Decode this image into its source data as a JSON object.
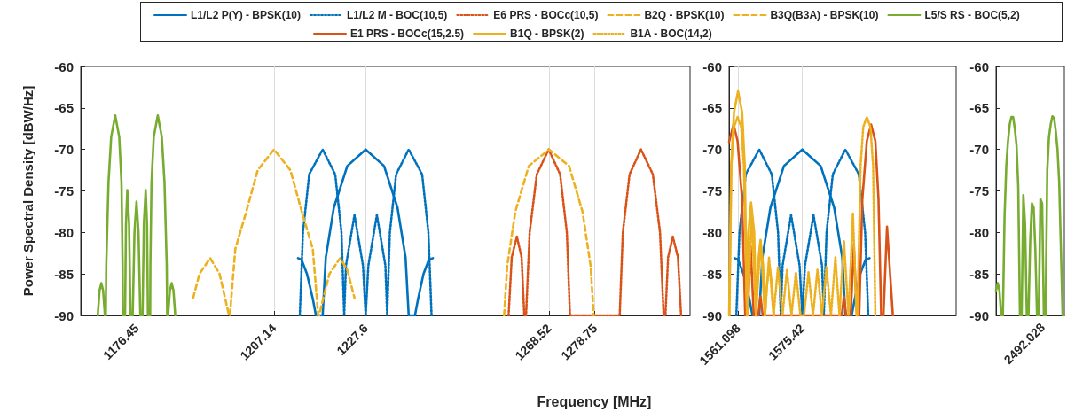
{
  "chart_data": [
    {
      "type": "line",
      "xlabel": "Frequency [MHz]",
      "ylabel": "Power Spectral Density [dBW/Hz]",
      "legend": "top",
      "grid": "x",
      "xlim": [
        1164,
        1300
      ],
      "xticks": [
        1176.45,
        1207.14,
        1227.6,
        1268.52,
        1278.75
      ],
      "ylim": [
        -90,
        -60
      ],
      "yticks": [
        -90,
        -85,
        -80,
        -75,
        -70,
        -65,
        -60
      ],
      "series": [
        {
          "name": "L1/L2 P(Y) - BPSK(10)",
          "color": "#0072bd",
          "line_style": "solid",
          "x": [
            1212.5,
            1213.3,
            1214.5,
            1215.8,
            1216.5,
            1218.0,
            1218.7,
            1220.5,
            1223.5,
            1227.6,
            1231.7,
            1234.7,
            1236.5,
            1237.2,
            1238.6,
            1239.3,
            1240.5,
            1241.7,
            1242.6
          ],
          "values": [
            -83.1,
            -83.3,
            -85,
            -88,
            -90,
            -90,
            -83,
            -77,
            -72,
            -70,
            -72,
            -77,
            -83,
            -90,
            -90,
            -88,
            -85,
            -83.3,
            -83.1
          ]
        },
        {
          "name": "L1/L2 M - BOC(10,5)",
          "color": "#0072bd",
          "line_style": "dotted",
          "x": [
            1212.9,
            1213.6,
            1215,
            1218,
            1220.8,
            1222.2,
            1222.8,
            1223.2,
            1225.1,
            1227.0,
            1227.6,
            1228.2,
            1230.1,
            1232.0,
            1232.4,
            1233.0,
            1234.4,
            1237.2,
            1240.2,
            1241.6,
            1242.3
          ],
          "values": [
            -90,
            -80,
            -73,
            -70,
            -73,
            -80,
            -90,
            -84,
            -77.9,
            -84,
            -90,
            -84,
            -77.9,
            -84,
            -90,
            -80,
            -73,
            -70,
            -73,
            -80,
            -90
          ]
        },
        {
          "name": "E6 PRS - BOCc(10,5)",
          "color": "#d95319",
          "line_style": "dotted",
          "x": [
            1259.5,
            1260.2,
            1261.35,
            1262.4,
            1263.0,
            1263.4,
            1264.2,
            1265.8,
            1268.45,
            1271.0,
            1272.5,
            1273.2,
            1284.3,
            1285.0,
            1286.5,
            1289.05,
            1291.7,
            1293.3,
            1294.1,
            1294.5,
            1295.1,
            1296.15,
            1297.3,
            1298.0
          ],
          "values": [
            -90,
            -83,
            -80.5,
            -83,
            -90,
            -90,
            -80,
            -73,
            -70,
            -73,
            -80,
            -90,
            -90,
            -80,
            -73,
            -70,
            -73,
            -80,
            -90,
            -90,
            -83,
            -80.5,
            -83,
            -90
          ]
        },
        {
          "name": "B2Q - BPSK(10)",
          "color": "#edb120",
          "line_style": "dashed",
          "x": [
            1189.1,
            1190.5,
            1192.9,
            1195,
            1197.1,
            1197.3,
            1198.5,
            1200.9,
            1203.5,
            1207.14,
            1210.8,
            1213.4,
            1215.8,
            1217.0,
            1217.2,
            1219.5,
            1221.9,
            1223.5,
            1225.1
          ],
          "values": [
            -87.9,
            -85,
            -83.1,
            -85,
            -90,
            -90,
            -82,
            -77.6,
            -72.5,
            -70,
            -72.5,
            -77.6,
            -82,
            -90,
            -90,
            -85,
            -83.1,
            -84.5,
            -87.9
          ]
        },
        {
          "name": "B3Q(B3A) - BPSK(10)",
          "color": "#edb120",
          "line_style": "dashed",
          "x": [
            1258.5,
            1259.2,
            1261,
            1264,
            1268.52,
            1273,
            1276,
            1277.8,
            1278.5
          ],
          "values": [
            -90,
            -84,
            -77.5,
            -72,
            -70,
            -72,
            -77.5,
            -84,
            -90
          ]
        },
        {
          "name": "L5/S RS - BOC(5,2)",
          "color": "#77ac30",
          "line_style": "solid",
          "x": [
            1167.8,
            1168.2,
            1168.6,
            1169.0,
            1169.4,
            1169.6,
            1169.7,
            1170.2,
            1170.8,
            1171.7,
            1172.6,
            1173.1,
            1173.35,
            1173.4,
            1173.9,
            1174.1,
            1174.4,
            1174.8,
            1175.1,
            1175.6,
            1176.0,
            1176.45,
            1176.9,
            1177.3,
            1177.8,
            1178.1,
            1178.5,
            1178.8,
            1179.0,
            1179.5,
            1179.55,
            1179.8,
            1180.3,
            1181.2,
            1182.1,
            1182.7,
            1183.2,
            1183.3,
            1183.5,
            1183.9,
            1184.3,
            1184.7,
            1185.1
          ],
          "values": [
            -90,
            -87,
            -86.1,
            -87,
            -90,
            -90,
            -84,
            -74,
            -68.5,
            -65.9,
            -68.5,
            -74,
            -84,
            -90,
            -90,
            -79,
            -74.9,
            -79,
            -90,
            -90,
            -80,
            -76.3,
            -80,
            -90,
            -90,
            -79,
            -74.9,
            -79,
            -90,
            -90,
            -84,
            -74,
            -68.5,
            -65.9,
            -68.5,
            -74,
            -84,
            -90,
            -90,
            -87,
            -86.1,
            -87,
            -90
          ]
        }
      ]
    },
    {
      "type": "line",
      "legend": "top",
      "grid": "x",
      "xlim": [
        1559.1,
        1609.7
      ],
      "xticks": [
        1561.098,
        1575.42
      ],
      "ylim": [
        -90,
        -60
      ],
      "yticks": [
        -90,
        -85,
        -80,
        -75,
        -70,
        -65,
        -60
      ],
      "series": [
        {
          "name": "L1/L2 P(Y) - BPSK(10)",
          "color": "#0072bd",
          "line_style": "solid",
          "x": [
            1560.32,
            1561.12,
            1562.32,
            1563.62,
            1564.32,
            1565.82,
            1566.52,
            1568.32,
            1571.32,
            1575.42,
            1579.52,
            1582.52,
            1584.32,
            1585.02,
            1586.42,
            1587.12,
            1588.32,
            1589.52,
            1590.42
          ],
          "values": [
            -83.1,
            -83.3,
            -85,
            -88,
            -90,
            -90,
            -83,
            -77,
            -72,
            -70,
            -72,
            -77,
            -83,
            -90,
            -90,
            -88,
            -85,
            -83.3,
            -83.1
          ]
        },
        {
          "name": "L1/L2 M - BOC(10,5)",
          "color": "#0072bd",
          "line_style": "dotted",
          "x": [
            1560.72,
            1561.42,
            1562.82,
            1565.82,
            1568.62,
            1570.02,
            1570.62,
            1571.02,
            1572.92,
            1574.82,
            1575.42,
            1576.02,
            1577.92,
            1579.82,
            1580.22,
            1580.82,
            1582.22,
            1585.02,
            1588.02,
            1589.42,
            1590.12
          ],
          "values": [
            -90,
            -80,
            -73,
            -70,
            -73,
            -80,
            -90,
            -84,
            -77.9,
            -84,
            -90,
            -84,
            -77.9,
            -84,
            -90,
            -80,
            -73,
            -70,
            -73,
            -80,
            -90
          ]
        },
        {
          "name": "E1 PRS - BOCc(15,2.5)",
          "color": "#d95319",
          "line_style": "solid",
          "x": [
            1559.1,
            1560.1,
            1561.0,
            1562.0,
            1562.7,
            1563.2,
            1563.9,
            1564.6,
            1565.6,
            1566.1,
            1566.6,
            1584.2,
            1584.7,
            1585.2,
            1586.2,
            1586.9,
            1587.6,
            1588.1,
            1588.8,
            1589.8,
            1590.75,
            1591.7,
            1592.4,
            1593.0,
            1593.5,
            1594.3,
            1595.6
          ],
          "values": [
            -69.1,
            -67.0,
            -69,
            -76,
            -90,
            -90,
            -81.6,
            -90,
            -90,
            -87.7,
            -90,
            -90,
            -87.7,
            -90,
            -90,
            -81.6,
            -90,
            -90,
            -76,
            -69,
            -67.0,
            -69,
            -76,
            -90,
            -90,
            -79.3,
            -90
          ]
        },
        {
          "name": "B1Q - BPSK(2)",
          "color": "#edb120",
          "line_style": "solid",
          "x": [
            1559.1,
            1559.6,
            1560.2,
            1561.1,
            1562.0,
            1562.6,
            1563.1,
            1563.4,
            1564.0,
            1564.7,
            1565.1,
            1565.5,
            1566.1,
            1566.7,
            1567.1,
            1567.5,
            1568.1,
            1568.7,
            1569.1
          ],
          "values": [
            -90,
            -72,
            -65.5,
            -63.0,
            -65.5,
            -72,
            -90,
            -80,
            -76.4,
            -80,
            -90,
            -84,
            -80.9,
            -84,
            -90,
            -86.5,
            -83.9,
            -86.5,
            -90
          ]
        },
        {
          "name": "B1A - BOC(14,2)",
          "color": "#edb120",
          "line_style": "dotted",
          "x": [
            1559.2,
            1559.6,
            1560.2,
            1561.0,
            1561.8,
            1562.4,
            1563.1,
            1563.3,
            1564.1,
            1565.1,
            1566.1,
            1567.1,
            1568.0,
            1569.0,
            1570.0,
            1571.0,
            1572.0,
            1573.0,
            1574.0,
            1575.0,
            1575.8,
            1576.8,
            1577.8,
            1578.8,
            1579.8,
            1580.8,
            1581.8,
            1582.8,
            1583.7,
            1584.7,
            1585.7,
            1586.7,
            1587.5,
            1587.7,
            1588.4,
            1589.0,
            1589.8,
            1590.6,
            1591.2,
            1591.7
          ],
          "values": [
            -90,
            -72,
            -67.3,
            -66.1,
            -67.3,
            -72,
            -90,
            -90,
            -77.7,
            -90,
            -81,
            -90,
            -83,
            -90,
            -84.2,
            -90,
            -84.5,
            -90,
            -84.8,
            -90,
            -90,
            -84.8,
            -90,
            -84.5,
            -90,
            -84.2,
            -90,
            -83,
            -90,
            -81,
            -90,
            -77.7,
            -90,
            -90,
            -72,
            -67.3,
            -66.1,
            -67.3,
            -72,
            -90
          ]
        }
      ]
    },
    {
      "type": "line",
      "legend": "top",
      "annotations": [
        "2492.028"
      ],
      "categories": [
        null,
        null,
        null,
        null,
        null,
        null,
        null,
        null,
        null,
        null,
        null,
        null,
        null,
        null,
        null,
        null,
        null,
        null,
        null,
        null,
        null,
        null,
        null,
        null,
        null,
        null,
        null,
        null,
        null,
        null,
        null,
        null,
        null,
        null,
        null,
        null,
        null,
        null,
        null,
        null,
        null
      ],
      "ylim": [
        -90,
        -60
      ],
      "yticks": [
        -90,
        -85,
        -80,
        -75,
        -70,
        -65,
        -60
      ],
      "series": [
        {
          "name": "L5/S RS - BOC(5,2)",
          "color": "#77ac30",
          "line_style": "solid",
          "values": [
            -87,
            -86.1,
            -87,
            -90,
            -90,
            -78,
            -72,
            -69,
            -67,
            -66.1,
            -66.1,
            -67.5,
            -69.5,
            -74.5,
            -90,
            -90,
            -75.5,
            -79,
            -90,
            -90,
            -81,
            -76.5,
            -77,
            -82,
            -90,
            -90,
            -76,
            -76.5,
            -90,
            -90,
            -72.5,
            -68.5,
            -67,
            -66,
            -66.2,
            -67.8,
            -70,
            -74,
            -82,
            -90,
            -90
          ]
        }
      ]
    }
  ]
}
